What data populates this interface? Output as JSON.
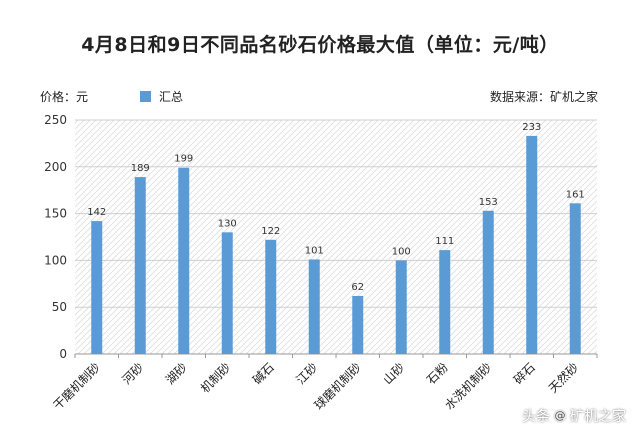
{
  "chart_data": {
    "type": "bar",
    "title": "4月8日和9日不同品名砂石价格最大值（单位：元/吨）",
    "unit_label": "价格：元",
    "legend": [
      "汇总"
    ],
    "source": "数据来源：矿机之家",
    "categories": [
      "干磨机制砂",
      "河砂",
      "湖砂",
      "机制砂",
      "碱石",
      "江砂",
      "球磨机制砂",
      "山砂",
      "石粉",
      "水洗机制砂",
      "碎石",
      "天然砂"
    ],
    "series": [
      {
        "name": "汇总",
        "values": [
          142,
          189,
          199,
          130,
          122,
          101,
          62,
          100,
          111,
          153,
          233,
          161
        ]
      }
    ],
    "ylim": [
      0,
      250
    ],
    "yticks": [
      0,
      50,
      100,
      150,
      200,
      250
    ],
    "grid": true,
    "bar_color": "#5b9bd5"
  },
  "watermark": {
    "prefix": "头条",
    "at": "@",
    "name": "矿机之家"
  }
}
